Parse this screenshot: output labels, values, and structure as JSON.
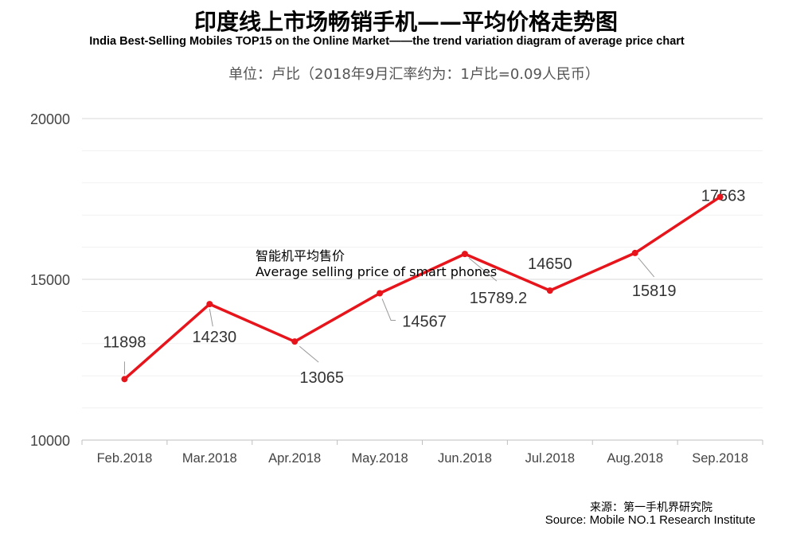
{
  "title_cn": "印度线上市场畅销手机——平均价格走势图",
  "title_en": "India Best-Selling  Mobiles TOP15 on the Online Market——the trend variation diagram of average price chart",
  "unit": "单位：卢比（2018年9月汇率约为：1卢比=0.09人民币）",
  "source_cn": "来源：第一手机界研究院",
  "source_en": "Source: Mobile NO.1 Research Institute",
  "chart_data": {
    "type": "line",
    "categories": [
      "Feb.2018",
      "Mar.2018",
      "Apr.2018",
      "May.2018",
      "Jun.2018",
      "Jul.2018",
      "Aug.2018",
      "Sep.2018"
    ],
    "series": [
      {
        "name_cn": "智能机平均售价",
        "name": "Average selling price of smart phones",
        "values": [
          11898,
          14230,
          13065,
          14567,
          15789.2,
          14650,
          15819,
          17563
        ],
        "labels": [
          "11898",
          "14230",
          "13065",
          "14567",
          "15789.2",
          "14650",
          "15819",
          "17563"
        ],
        "color": "#e8141b"
      }
    ],
    "ylim": [
      10000,
      20000
    ],
    "yticks": [
      "10000",
      "15000",
      "20000"
    ],
    "grid": true
  }
}
